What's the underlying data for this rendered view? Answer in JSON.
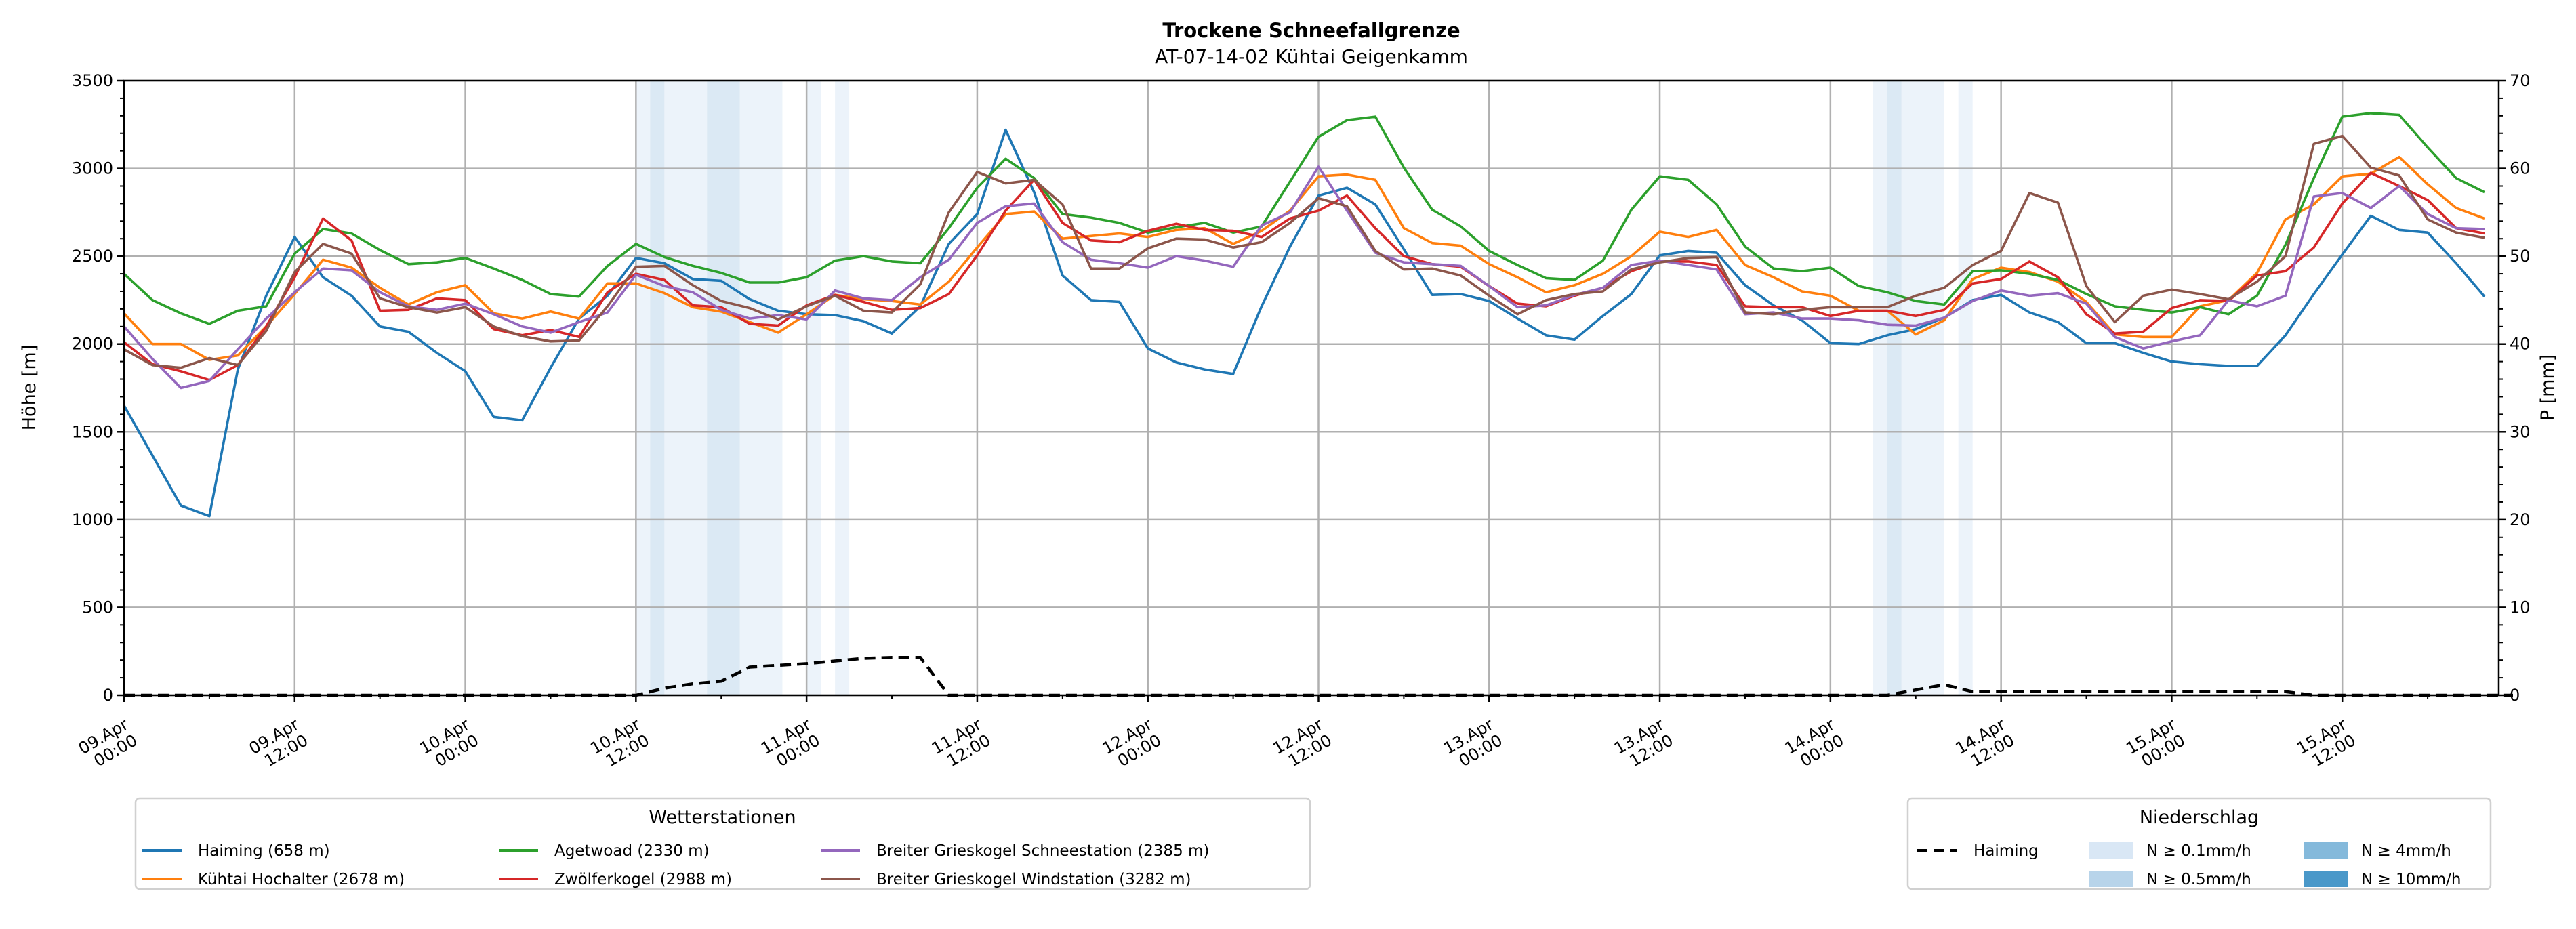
{
  "chart_data": {
    "type": "line",
    "title": "Trockene Schneefallgrenze",
    "subtitle": "AT-07-14-02 Kühtai Geigenkamm",
    "xlabel": "",
    "ylabel": "Höhe [m]",
    "y2label": "P [mm]",
    "ylim": [
      0,
      3500
    ],
    "y2lim": [
      0,
      70
    ],
    "yticks": [
      0,
      500,
      1000,
      1500,
      2000,
      2500,
      3000,
      3500
    ],
    "y2ticks": [
      0,
      10,
      20,
      30,
      40,
      50,
      60,
      70
    ],
    "grid": true,
    "x_unit": "hours since 09.Apr 00:00",
    "xlim_hours": [
      0,
      167
    ],
    "xticks_hours": [
      0,
      12,
      24,
      36,
      48,
      60,
      72,
      84,
      96,
      108,
      120,
      132,
      144,
      156
    ],
    "xtick_labels": [
      [
        "09.Apr",
        "00:00"
      ],
      [
        "09.Apr",
        "12:00"
      ],
      [
        "10.Apr",
        "00:00"
      ],
      [
        "10.Apr",
        "12:00"
      ],
      [
        "11.Apr",
        "00:00"
      ],
      [
        "11.Apr",
        "12:00"
      ],
      [
        "12.Apr",
        "00:00"
      ],
      [
        "12.Apr",
        "12:00"
      ],
      [
        "13.Apr",
        "00:00"
      ],
      [
        "13.Apr",
        "12:00"
      ],
      [
        "14.Apr",
        "00:00"
      ],
      [
        "14.Apr",
        "12:00"
      ],
      [
        "15.Apr",
        "00:00"
      ],
      [
        "15.Apr",
        "12:00"
      ]
    ],
    "x_step_hours": 2,
    "series": [
      {
        "name": "Haiming (658 m)",
        "color": "#1f77b4",
        "values": [
          1650,
          1365,
          1080,
          1020,
          1855,
          2275,
          2610,
          2380,
          2275,
          2100,
          2070,
          1950,
          1845,
          1585,
          1565,
          1865,
          2145,
          2275,
          2490,
          2460,
          2370,
          2360,
          2255,
          2190,
          2170,
          2165,
          2130,
          2060,
          2215,
          2570,
          2740,
          3220,
          2865,
          2390,
          2250,
          2240,
          1975,
          1895,
          1855,
          1830,
          2215,
          2555,
          2845,
          2890,
          2795,
          2540,
          2280,
          2285,
          2245,
          2145,
          2050,
          2025,
          2160,
          2285,
          2505,
          2530,
          2520,
          2335,
          2220,
          2135,
          2005,
          2000,
          2050,
          2085,
          2150,
          2250,
          2280,
          2180,
          2125,
          2005,
          2005,
          1950,
          1900,
          1885,
          1875,
          1875,
          2050,
          2285,
          2510,
          2730,
          2650,
          2635,
          2460,
          2270
        ]
      },
      {
        "name": "Kühtai Hochalter (2678 m)",
        "color": "#ff7f0e",
        "values": [
          2175,
          2000,
          2000,
          1910,
          1935,
          2100,
          2285,
          2480,
          2435,
          2320,
          2225,
          2295,
          2335,
          2175,
          2145,
          2185,
          2145,
          2345,
          2345,
          2290,
          2210,
          2185,
          2125,
          2065,
          2170,
          2280,
          2255,
          2245,
          2225,
          2355,
          2550,
          2740,
          2755,
          2600,
          2615,
          2630,
          2610,
          2650,
          2660,
          2570,
          2645,
          2760,
          2955,
          2965,
          2935,
          2660,
          2575,
          2560,
          2455,
          2380,
          2295,
          2335,
          2400,
          2500,
          2640,
          2610,
          2650,
          2450,
          2380,
          2300,
          2275,
          2190,
          2190,
          2055,
          2135,
          2370,
          2435,
          2410,
          2355,
          2240,
          2055,
          2040,
          2040,
          2215,
          2250,
          2405,
          2710,
          2795,
          2955,
          2970,
          3065,
          2910,
          2775,
          2715
        ]
      },
      {
        "name": "Agetwoad (2330 m)",
        "color": "#2ca02c",
        "values": [
          2400,
          2250,
          2175,
          2115,
          2190,
          2215,
          2515,
          2655,
          2630,
          2535,
          2455,
          2465,
          2490,
          2430,
          2365,
          2285,
          2270,
          2445,
          2570,
          2495,
          2445,
          2405,
          2350,
          2350,
          2380,
          2475,
          2500,
          2470,
          2460,
          2660,
          2890,
          3055,
          2945,
          2740,
          2720,
          2690,
          2635,
          2665,
          2690,
          2635,
          2670,
          2925,
          3180,
          3275,
          3295,
          3005,
          2765,
          2670,
          2530,
          2450,
          2375,
          2365,
          2475,
          2765,
          2955,
          2935,
          2795,
          2555,
          2430,
          2415,
          2435,
          2330,
          2295,
          2245,
          2225,
          2415,
          2420,
          2400,
          2365,
          2285,
          2215,
          2195,
          2180,
          2210,
          2170,
          2275,
          2565,
          2945,
          3295,
          3315,
          3305,
          3120,
          2945,
          2865
        ]
      },
      {
        "name": "Zwölferkogel (2988 m)",
        "color": "#d62728",
        "values": [
          2010,
          1885,
          1845,
          1795,
          1880,
          2100,
          2380,
          2715,
          2590,
          2190,
          2195,
          2260,
          2250,
          2085,
          2050,
          2080,
          2040,
          2295,
          2400,
          2365,
          2220,
          2210,
          2115,
          2105,
          2220,
          2280,
          2240,
          2195,
          2205,
          2285,
          2505,
          2760,
          2935,
          2690,
          2590,
          2580,
          2645,
          2685,
          2650,
          2645,
          2610,
          2715,
          2760,
          2845,
          2660,
          2500,
          2455,
          2440,
          2330,
          2230,
          2215,
          2275,
          2320,
          2415,
          2470,
          2470,
          2450,
          2215,
          2210,
          2210,
          2160,
          2190,
          2190,
          2160,
          2195,
          2345,
          2370,
          2470,
          2380,
          2170,
          2060,
          2070,
          2205,
          2250,
          2245,
          2390,
          2415,
          2550,
          2800,
          2975,
          2900,
          2820,
          2660,
          2630
        ]
      },
      {
        "name": "Breiter Grieskogel Schneestation (2385 m)",
        "color": "#9467bd",
        "values": [
          2100,
          1915,
          1750,
          1790,
          1970,
          2145,
          2295,
          2430,
          2420,
          2295,
          2215,
          2195,
          2230,
          2170,
          2100,
          2065,
          2125,
          2180,
          2395,
          2330,
          2295,
          2195,
          2145,
          2165,
          2140,
          2305,
          2260,
          2250,
          2380,
          2480,
          2690,
          2785,
          2800,
          2580,
          2480,
          2460,
          2435,
          2500,
          2475,
          2440,
          2675,
          2750,
          3010,
          2760,
          2520,
          2465,
          2455,
          2445,
          2330,
          2210,
          2220,
          2280,
          2320,
          2450,
          2475,
          2450,
          2425,
          2170,
          2180,
          2145,
          2145,
          2135,
          2110,
          2105,
          2150,
          2245,
          2305,
          2275,
          2290,
          2230,
          2040,
          1975,
          2015,
          2050,
          2250,
          2215,
          2275,
          2840,
          2860,
          2775,
          2900,
          2740,
          2660,
          2655
        ]
      },
      {
        "name": "Breiter Grieskogel Windstation (3282 m)",
        "color": "#8c564b",
        "values": [
          1970,
          1880,
          1865,
          1920,
          1880,
          2075,
          2410,
          2570,
          2515,
          2260,
          2210,
          2180,
          2210,
          2100,
          2045,
          2015,
          2020,
          2215,
          2440,
          2445,
          2335,
          2245,
          2205,
          2140,
          2215,
          2275,
          2190,
          2180,
          2340,
          2750,
          2980,
          2915,
          2935,
          2795,
          2430,
          2430,
          2545,
          2600,
          2595,
          2550,
          2580,
          2690,
          2830,
          2785,
          2530,
          2425,
          2430,
          2390,
          2275,
          2170,
          2250,
          2285,
          2300,
          2425,
          2465,
          2490,
          2495,
          2180,
          2170,
          2195,
          2210,
          2210,
          2210,
          2275,
          2320,
          2450,
          2530,
          2860,
          2805,
          2330,
          2125,
          2275,
          2310,
          2285,
          2255,
          2355,
          2500,
          3140,
          3185,
          3005,
          2960,
          2710,
          2635,
          2605
        ]
      }
    ],
    "precipitation": {
      "name": "Haiming",
      "color": "#000000",
      "values": [
        0,
        0,
        0,
        0,
        0,
        0,
        0,
        0,
        0,
        0,
        0,
        0,
        0,
        0,
        0,
        0,
        0,
        0,
        0,
        0.8,
        1.3,
        1.6,
        3.2,
        3.4,
        3.6,
        3.9,
        4.2,
        4.3,
        4.3,
        0,
        0,
        0,
        0,
        0,
        0,
        0,
        0,
        0,
        0,
        0,
        0,
        0,
        0,
        0,
        0,
        0,
        0,
        0,
        0,
        0,
        0,
        0,
        0,
        0,
        0,
        0,
        0,
        0,
        0,
        0,
        0,
        0,
        0,
        0.6,
        1.2,
        0.4,
        0.4,
        0.4,
        0.4,
        0.4,
        0.4,
        0.4,
        0.4,
        0.4,
        0.4,
        0.4,
        0.4,
        0,
        0,
        0,
        0,
        0,
        0,
        0,
        0
      ]
    },
    "precip_bands": [
      {
        "start": 36,
        "end": 37,
        "level": 0
      },
      {
        "start": 37,
        "end": 38,
        "level": 1
      },
      {
        "start": 38,
        "end": 41,
        "level": 0
      },
      {
        "start": 41,
        "end": 43.3,
        "level": 1
      },
      {
        "start": 43.3,
        "end": 46.3,
        "level": 0
      },
      {
        "start": 48,
        "end": 49,
        "level": 0
      },
      {
        "start": 50,
        "end": 51,
        "level": 0
      },
      {
        "start": 123,
        "end": 124,
        "level": 0
      },
      {
        "start": 124,
        "end": 125,
        "level": 1
      },
      {
        "start": 125,
        "end": 128,
        "level": 0
      },
      {
        "start": 129,
        "end": 130,
        "level": 0
      }
    ],
    "legend_stations": {
      "title": "Wetterstationen",
      "placement": "bottom-left"
    },
    "legend_precip": {
      "title": "Niederschlag",
      "placement": "bottom-right",
      "line_label": "Haiming",
      "levels": [
        {
          "label": "N ≥ 0.1mm/h",
          "color": "#d9e7f5"
        },
        {
          "label": "N ≥ 0.5mm/h",
          "color": "#b8d4ea"
        },
        {
          "label": "N ≥ 4mm/h",
          "color": "#84b9db"
        },
        {
          "label": "N ≥ 10mm/h",
          "color": "#4a98c9"
        }
      ]
    }
  }
}
